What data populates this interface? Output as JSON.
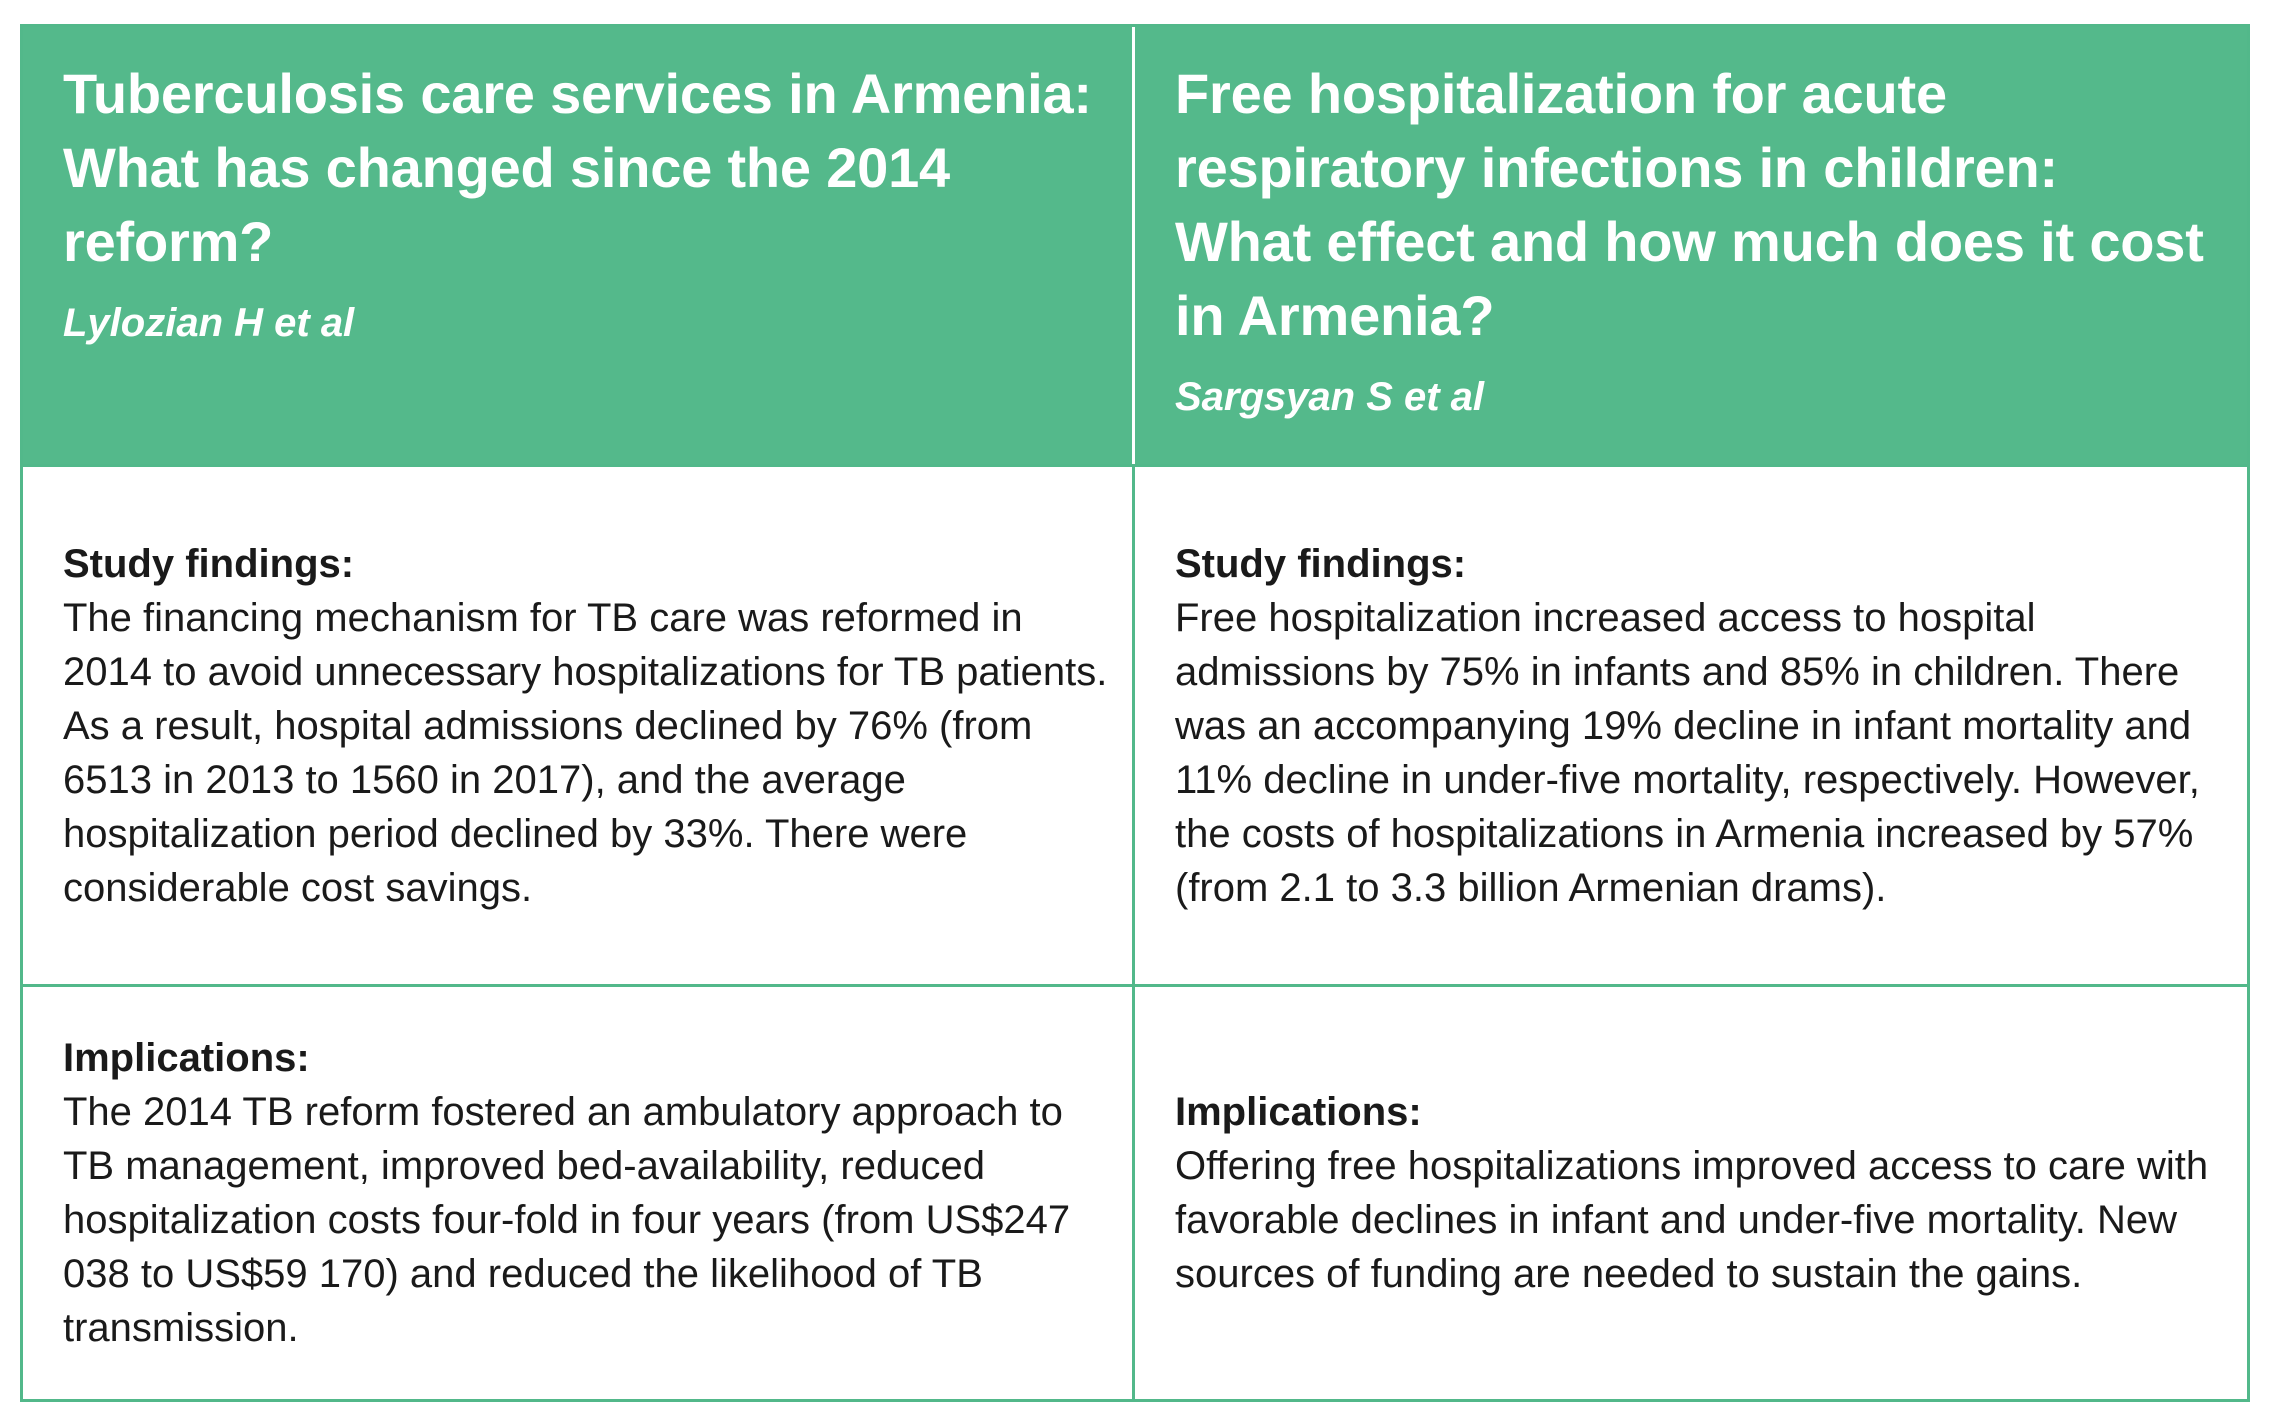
{
  "studies": [
    {
      "title": "Tuberculosis care services in Armenia: What has changed since the 2014 reform?",
      "authors": "Lylozian H et al",
      "findings_label": "Study findings:",
      "findings": "The financing mechanism for TB care was reformed in 2014 to avoid unnecessary hospitalizations for TB patients. As a result, hospital admissions declined by 76% (from 6513 in 2013 to 1560 in 2017), and the average hospitalization period declined by 33%. There were considerable cost savings.",
      "implications_label": "Implications:",
      "implications": "The 2014 TB reform fostered an ambulatory approach to TB management, improved bed-availability, reduced hospitalization costs four-fold in four years (from US$247 038 to US$59 170) and reduced the likelihood of TB transmission."
    },
    {
      "title": "Free hospitalization for acute respiratory infections in children: What effect and how much does it cost in Armenia?",
      "authors": "Sargsyan S et al",
      "findings_label": "Study findings:",
      "findings": "Free hospitalization increased access to hospital admissions by 75% in infants and 85% in children. There was an accompanying 19% decline in infant mortality and 11% decline in under-five mortality, respectively. However, the costs of hospitalizations in Armenia increased by 57% (from 2.1 to 3.3 billion Armenian drams).",
      "implications_label": "Implications:",
      "implications": "Offering free hospitalizations improved access to care with favorable declines in infant and under-five mortality. New sources of funding are needed to sustain the gains."
    }
  ]
}
